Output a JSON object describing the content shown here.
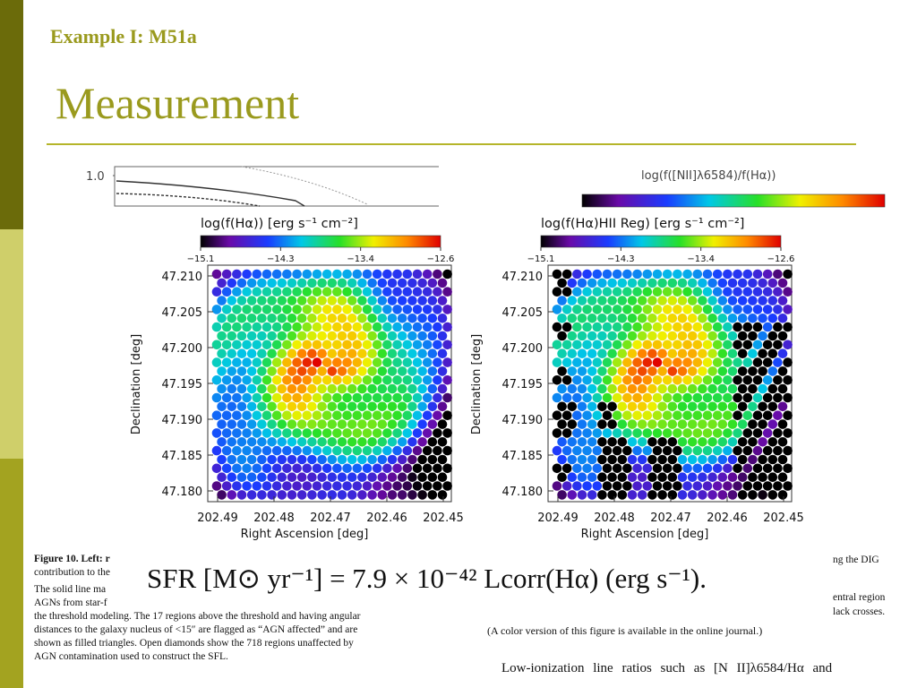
{
  "slide": {
    "subtitle": "Example I: M51a",
    "title": "Measurement"
  },
  "top_strip": {
    "left_axis_label": "1.0",
    "right_colorbar_label": "log(f([NII]λ6584)/f(Hα))"
  },
  "panels": [
    {
      "colorbar_label": "log(f(Hα)) [erg s⁻¹ cm⁻²]",
      "colorbar_ticks": [
        "−15.1",
        "−14.3",
        "−13.4",
        "−12.6"
      ],
      "yticks": [
        "47.210",
        "47.205",
        "47.200",
        "47.195",
        "47.190",
        "47.185",
        "47.180"
      ],
      "xticks": [
        "202.49",
        "202.48",
        "202.47",
        "202.46",
        "202.45"
      ],
      "ylabel": "Declination [deg]",
      "xlabel": "Right Ascension [deg]"
    },
    {
      "colorbar_label": "log(f(Hα)HII Reg) [erg s⁻¹ cm⁻²]",
      "colorbar_ticks": [
        "−15.1",
        "−14.3",
        "−13.4",
        "−12.6"
      ],
      "yticks": [
        "47.210",
        "47.205",
        "47.200",
        "47.195",
        "47.190",
        "47.185",
        "47.180"
      ],
      "xticks": [
        "202.49",
        "202.48",
        "202.47",
        "202.46",
        "202.45"
      ],
      "ylabel": "Declination [deg]",
      "xlabel": "Right Ascension [deg]"
    }
  ],
  "caption_left": [
    "Figure 10. Left: r",
    "contribution to the",
    "The solid line ma",
    "AGNs from star-f",
    "the threshold modeling. The 17 regions above the threshold and having angular",
    "distances to the galaxy nucleus of <15″ are flagged as “AGN affected” and are",
    "shown as filled triangles. Open diamonds show the 718 regions unaffected by",
    "AGN contamination used to construct the SFL."
  ],
  "caption_right": [
    "ng the DIG",
    "entral region",
    "lack crosses."
  ],
  "formula": "SFR [M⊙ yr⁻¹] = 7.9 × 10⁻⁴² Lcorr(Hα) (erg s⁻¹).",
  "online_note": "(A color version of this figure is available in the online journal.)",
  "low_ionization": "Low-ionization line ratios such as [N II]λ6584/Hα and"
}
